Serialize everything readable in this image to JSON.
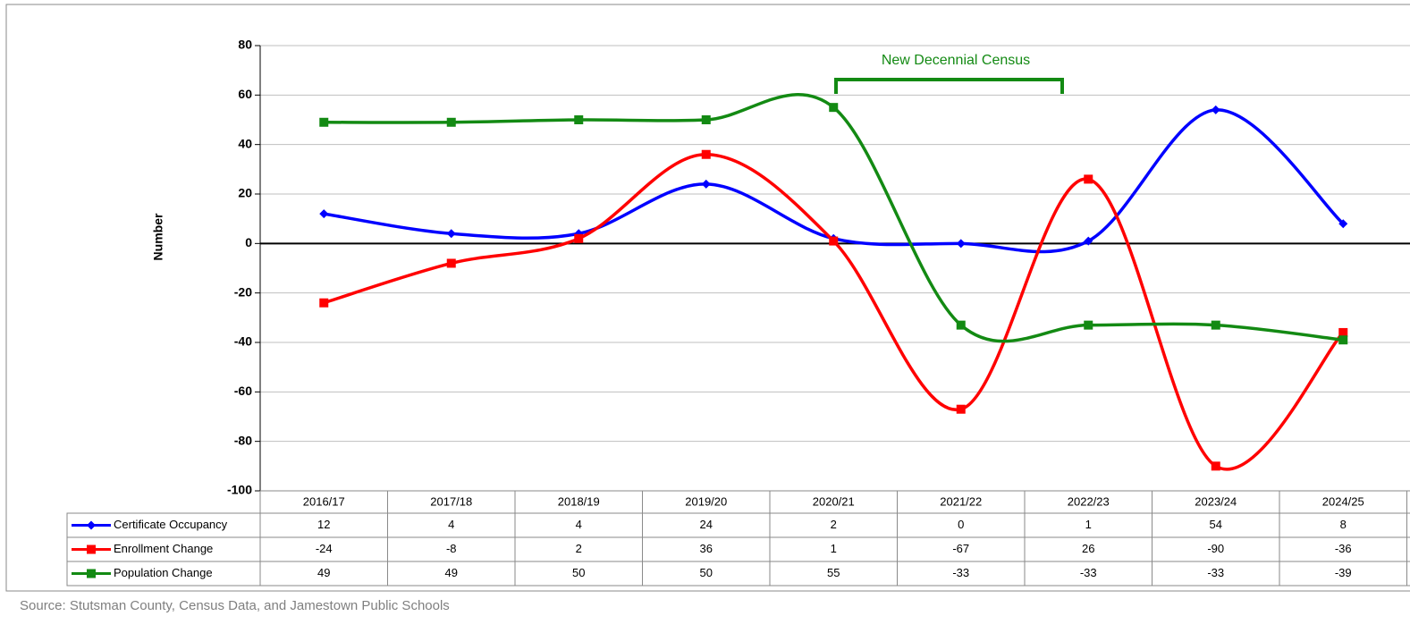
{
  "chart_data": {
    "type": "line",
    "y_label": "Number",
    "annotation": "New Decennial Census",
    "source": "Source: Stutsman County, Census Data, and Jamestown Public Schools",
    "categories": [
      "2016/17",
      "2017/18",
      "2018/19",
      "2019/20",
      "2020/21",
      "2021/22",
      "2022/23",
      "2023/24",
      "2024/25"
    ],
    "series": [
      {
        "name": "Certificate Occupancy",
        "color": "#0000ff",
        "marker": "diamond",
        "values": [
          12,
          4,
          4,
          24,
          2,
          0,
          1,
          54,
          8
        ]
      },
      {
        "name": "Enrollment Change",
        "color": "#ff0000",
        "marker": "square",
        "values": [
          -24,
          -8,
          2,
          36,
          1,
          -67,
          26,
          -90,
          -36
        ]
      },
      {
        "name": "Population Change",
        "color": "#138a13",
        "marker": "square",
        "values": [
          49,
          49,
          50,
          50,
          55,
          -33,
          -33,
          -33,
          -39
        ]
      }
    ],
    "ylim": [
      -100,
      80
    ],
    "yticks": [
      -100,
      -80,
      -60,
      -40,
      -20,
      0,
      20,
      40,
      60,
      80
    ],
    "grid": true,
    "smooth": true
  }
}
